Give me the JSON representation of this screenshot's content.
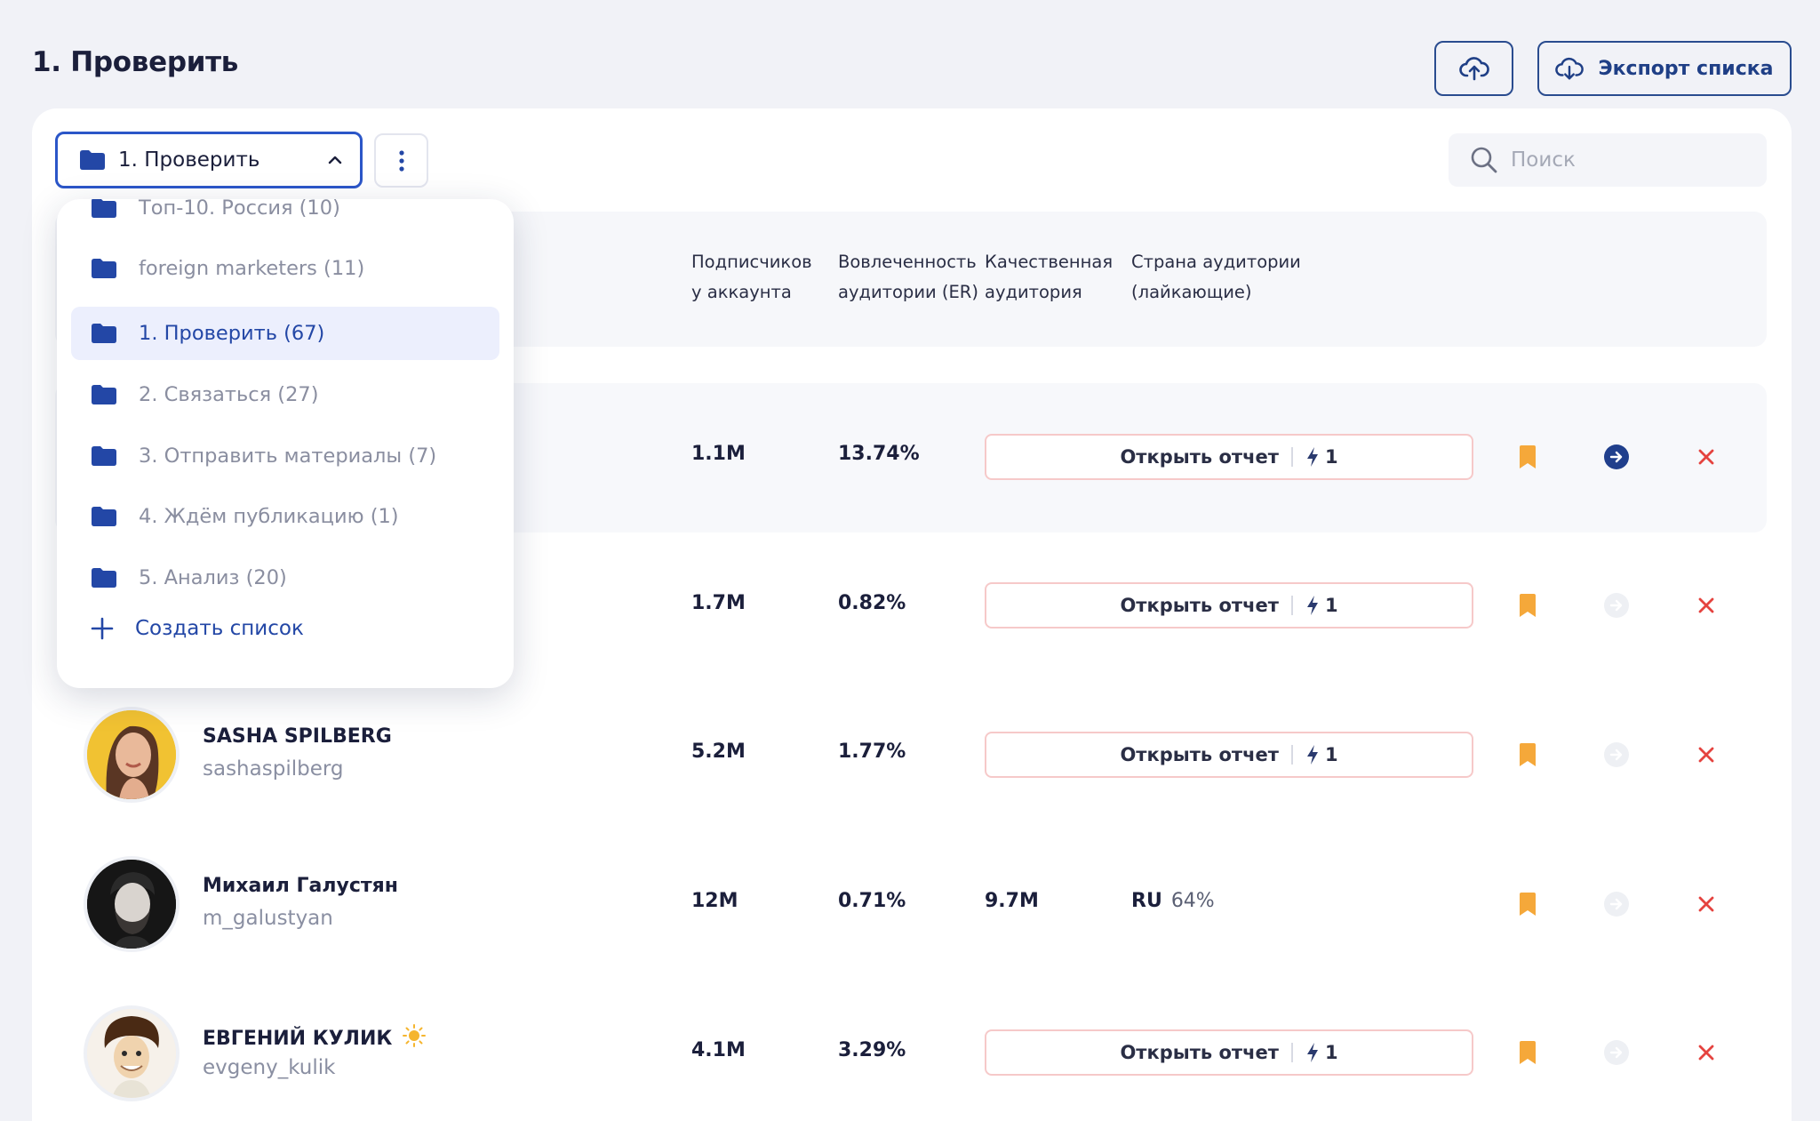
{
  "header": {
    "title": "1. Проверить",
    "export_label": "Экспорт списка"
  },
  "toolbar": {
    "selected_list": "1. Проверить",
    "search_placeholder": "Поиск"
  },
  "table": {
    "columns": [
      "Подписчиков у аккаунта",
      "Вовлеченность аудитории (ER)",
      "Качественная аудитория",
      "Страна аудитории (лайкающие)"
    ],
    "columns_lines": {
      "subs": [
        "Подписчиков",
        "у аккаунта"
      ],
      "er": [
        "Вовлеченность",
        "аудитории (ER)"
      ],
      "quality": [
        "Качественная",
        "аудитория"
      ],
      "country": [
        "Страна аудитории",
        "(лайкающие)"
      ]
    },
    "report_label": "Открыть отчет",
    "rows": [
      {
        "name": "",
        "handle": "",
        "subscribers": "1.1M",
        "er": "13.74%",
        "report_count": "1",
        "highlighted": true,
        "go_active": true
      },
      {
        "name": "",
        "handle": "",
        "subscribers": "1.7M",
        "er": "0.82%",
        "report_count": "1",
        "highlighted": false,
        "go_active": false
      },
      {
        "name": "SASHA SPILBERG",
        "handle": "sashaspilberg",
        "subscribers": "5.2M",
        "er": "1.77%",
        "report_count": "1",
        "highlighted": false,
        "go_active": false
      },
      {
        "name": "Михаил Галустян",
        "handle": "m_galustyan",
        "subscribers": "12M",
        "er": "0.71%",
        "quality": "9.7M",
        "country_code": "RU",
        "country_pct": "64%",
        "highlighted": false,
        "go_active": false
      },
      {
        "name": "ЕВГЕНИЙ КУЛИК",
        "handle": "evgeny_kulik",
        "subscribers": "4.1M",
        "er": "3.29%",
        "report_count": "1",
        "highlighted": false,
        "go_active": false
      }
    ]
  },
  "dropdown": {
    "items": [
      {
        "label": "Топ-10. Россия (10)"
      },
      {
        "label": "foreign marketers (11)"
      },
      {
        "label": "1. Проверить (67)",
        "selected": true
      },
      {
        "label": "2. Связаться (27)"
      },
      {
        "label": "3. Отправить материалы (7)"
      },
      {
        "label": "4. Ждём публикацию (1)"
      },
      {
        "label": "5. Анализ (20)"
      }
    ],
    "create_label": "Создать список"
  },
  "colors": {
    "accent": "#2b56c8",
    "navy": "#1f3f86",
    "bookmark": "#f5a83a",
    "close": "#e5433f",
    "report_border": "#f6c9c9"
  }
}
